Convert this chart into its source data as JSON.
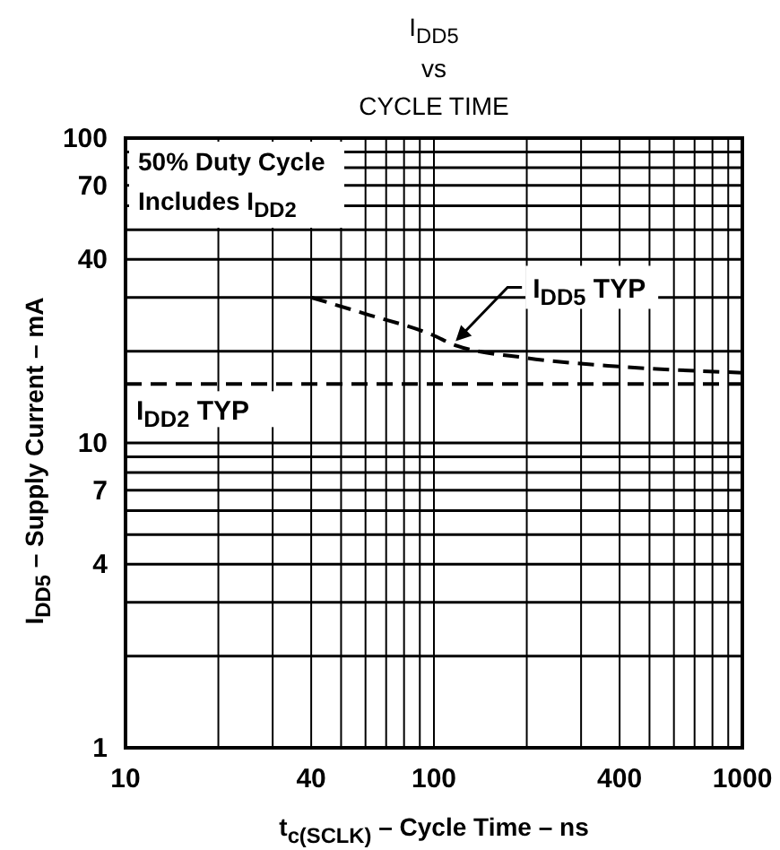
{
  "chart_data": {
    "type": "line",
    "title": "I$_{DD5}$",
    "subtitle": "vs CYCLE TIME",
    "xlabel": "t$_{c(SCLK)}$ – Cycle Time – ns",
    "ylabel": "I$_{DD5}$ – Supply Current – mA",
    "annotations": [
      "50% Duty Cycle",
      "Includes I$_{DD2}$"
    ],
    "log": "xy",
    "grid": true,
    "line_style": "dashed",
    "xlim": [
      10,
      1000
    ],
    "ylim": [
      1,
      100
    ],
    "xticks": [
      10,
      {
        "value": 20,
        "label": null
      },
      {
        "value": 30,
        "label": null
      },
      40,
      {
        "value": 50,
        "label": null
      },
      {
        "value": 60,
        "label": null
      },
      {
        "value": 70,
        "label": null
      },
      {
        "value": 80,
        "label": null
      },
      {
        "value": 90,
        "label": null
      },
      100,
      {
        "value": 200,
        "label": null
      },
      {
        "value": 300,
        "label": null
      },
      400,
      {
        "value": 500,
        "label": null
      },
      {
        "value": 600,
        "label": null
      },
      {
        "value": 700,
        "label": null
      },
      {
        "value": 800,
        "label": null
      },
      {
        "value": 900,
        "label": null
      },
      1000
    ],
    "yticks": [
      1,
      {
        "value": 2,
        "label": null
      },
      {
        "value": 3,
        "label": null
      },
      4,
      {
        "value": 5,
        "label": null
      },
      {
        "value": 6,
        "label": null
      },
      7,
      {
        "value": 8,
        "label": null
      },
      {
        "value": 9,
        "label": null
      },
      10,
      {
        "value": 20,
        "label": null
      },
      {
        "value": 30,
        "label": null
      },
      40,
      {
        "value": 50,
        "label": null
      },
      {
        "value": 60,
        "label": null
      },
      70,
      {
        "value": 80,
        "label": null
      },
      {
        "value": 90,
        "label": null
      },
      100
    ],
    "series": [
      {
        "name": "I$_{DD5}$ TYP",
        "color": "#000000",
        "x": [
          40,
          60,
          100,
          116,
          200,
          400,
          1000
        ],
        "values": [
          30,
          26.5,
          22.5,
          21,
          19,
          17.8,
          17
        ]
      },
      {
        "name": "I$_{DD2}$ TYP",
        "color": "#000000",
        "x": [
          10,
          1000
        ],
        "values": [
          15.6,
          15.6
        ]
      }
    ]
  }
}
